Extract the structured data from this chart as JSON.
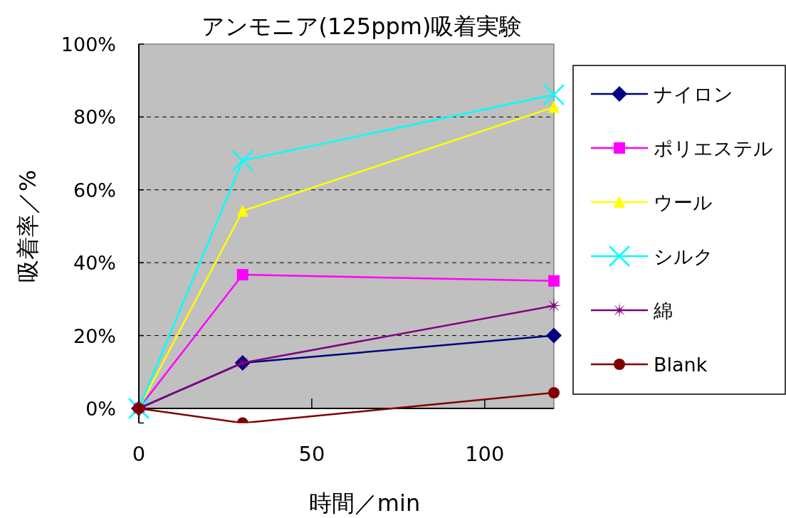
{
  "chart_data": {
    "type": "line",
    "title": "アンモニア(125ppm)吸着実験",
    "xlabel": "時間／min",
    "ylabel": "吸着率／%",
    "x": [
      0,
      30,
      120
    ],
    "xlim": [
      0,
      120
    ],
    "xticks": [
      0,
      50,
      100
    ],
    "ylim": [
      -4,
      100
    ],
    "yticks": [
      {
        "value": 0,
        "label": "0%"
      },
      {
        "value": 20,
        "label": "20%"
      },
      {
        "value": 40,
        "label": "40%"
      },
      {
        "value": 60,
        "label": "60%"
      },
      {
        "value": 80,
        "label": "80%"
      },
      {
        "value": 100,
        "label": "100%"
      }
    ],
    "grid": "y",
    "legend": "right",
    "series": [
      {
        "name": "ナイロン",
        "color": "#000080",
        "marker": "diamond",
        "values": [
          0,
          12.5,
          20
        ]
      },
      {
        "name": "ポリエステル",
        "color": "#ff00ff",
        "marker": "square",
        "values": [
          0,
          36.7,
          35
        ]
      },
      {
        "name": "ウール",
        "color": "#ffff00",
        "marker": "triangle",
        "values": [
          0,
          54.2,
          82.7
        ]
      },
      {
        "name": "シルク",
        "color": "#00ffff",
        "marker": "cross",
        "values": [
          0,
          68,
          86.1
        ]
      },
      {
        "name": "綿",
        "color": "#800080",
        "marker": "star",
        "values": [
          0,
          12.5,
          28.2
        ]
      },
      {
        "name": "Blank",
        "color": "#800000",
        "marker": "circle",
        "values": [
          0,
          -4,
          4.3
        ]
      }
    ]
  }
}
